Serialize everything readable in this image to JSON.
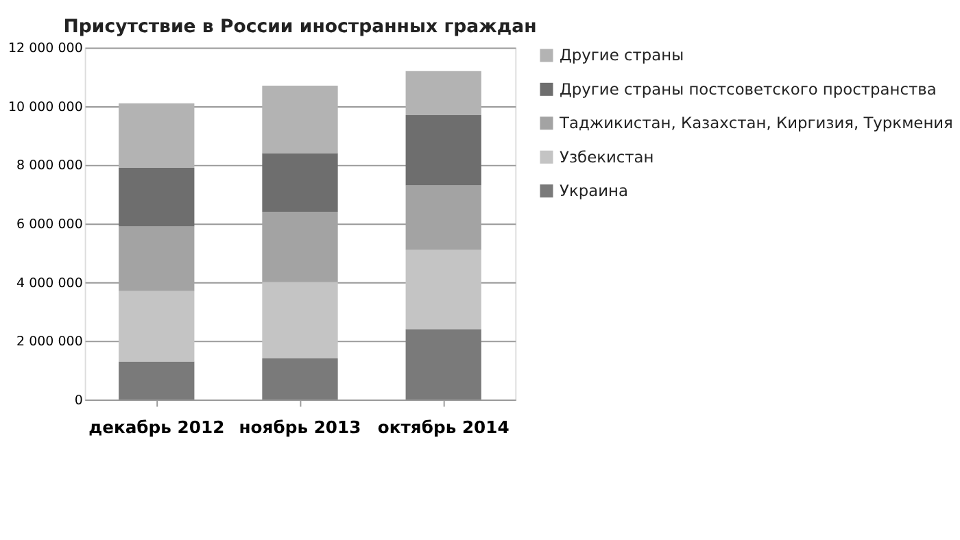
{
  "chart_data": {
    "type": "bar",
    "title": "Присутствие в России иностранных граждан",
    "stacked": true,
    "categories": [
      "декабрь 2012",
      "ноябрь 2013",
      "октябрь 2014"
    ],
    "series": [
      {
        "name": "Украина",
        "color": "#7a7a7a",
        "values": [
          1300000,
          1400000,
          2400000
        ]
      },
      {
        "name": "Узбекистан",
        "color": "#c4c4c4",
        "values": [
          2400000,
          2600000,
          2700000
        ]
      },
      {
        "name": "Таджикистан, Казахстан, Киргизия, Туркмения",
        "color": "#a3a3a3",
        "values": [
          2200000,
          2400000,
          2200000
        ]
      },
      {
        "name": "Другие страны постсоветского пространства",
        "color": "#6e6e6e",
        "values": [
          2000000,
          2000000,
          2400000
        ]
      },
      {
        "name": "Другие страны",
        "color": "#b3b3b3",
        "values": [
          2200000,
          2300000,
          1500000
        ]
      }
    ],
    "ylim": [
      0,
      12000000
    ],
    "yticks": [
      0,
      {
        "value": 2000000,
        "label": "2 000 000"
      },
      {
        "value": 4000000,
        "label": "4 000 000"
      },
      {
        "value": 6000000,
        "label": "6 000 000"
      },
      {
        "value": 8000000,
        "label": "8 000 000"
      },
      {
        "value": 10000000,
        "label": "10 000 000"
      },
      {
        "value": 12000000,
        "label": "12 000 000"
      }
    ],
    "grid": "y",
    "legend": "right"
  }
}
